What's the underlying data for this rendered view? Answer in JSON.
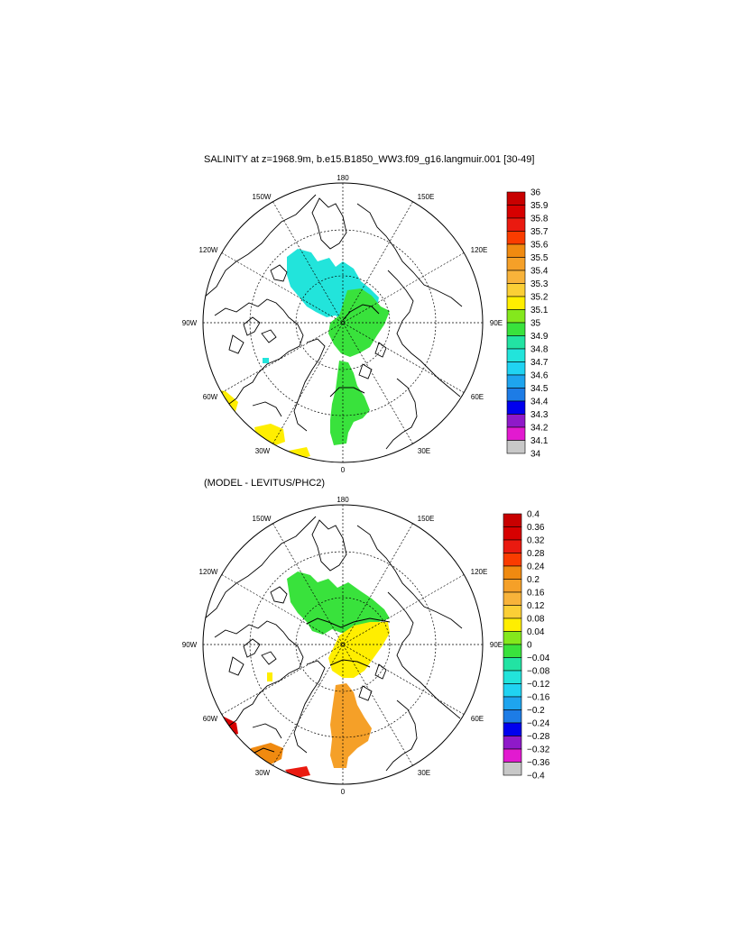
{
  "panel1": {
    "title": "SALINITY at z=1968.9m, b.e15.B1850_WW3.f09_g16.langmuir.001 [30-49]",
    "colorbar": [
      {
        "label": "36",
        "color": "#c80000"
      },
      {
        "label": "35.9",
        "color": "#d70000"
      },
      {
        "label": "35.8",
        "color": "#ea1a10"
      },
      {
        "label": "35.7",
        "color": "#fa3c00"
      },
      {
        "label": "35.6",
        "color": "#f08a10"
      },
      {
        "label": "35.5",
        "color": "#f5a028"
      },
      {
        "label": "35.4",
        "color": "#f8b33a"
      },
      {
        "label": "35.3",
        "color": "#fbcf36"
      },
      {
        "label": "35.2",
        "color": "#ffee00"
      },
      {
        "label": "35.1",
        "color": "#84e81c"
      },
      {
        "label": "35",
        "color": "#39e23c"
      },
      {
        "label": "34.9",
        "color": "#22e3a3"
      },
      {
        "label": "34.8",
        "color": "#22e4db"
      },
      {
        "label": "34.7",
        "color": "#20d3f2"
      },
      {
        "label": "34.6",
        "color": "#1ea4ee"
      },
      {
        "label": "34.5",
        "color": "#1d7ce6"
      },
      {
        "label": "34.4",
        "color": "#0000ee"
      },
      {
        "label": "34.3",
        "color": "#8f19c9"
      },
      {
        "label": "34.2",
        "color": "#e21ad0"
      },
      {
        "label": "34.1",
        "color": "#c8c8c8"
      },
      {
        "label": "34",
        "color": "#6e6e6e"
      }
    ]
  },
  "panel2": {
    "title": "(MODEL - LEVITUS/PHC2)",
    "colorbar": [
      {
        "label": "0.4",
        "color": "#c80000"
      },
      {
        "label": "0.36",
        "color": "#d70000"
      },
      {
        "label": "0.32",
        "color": "#ea1a10"
      },
      {
        "label": "0.28",
        "color": "#fa3c00"
      },
      {
        "label": "0.24",
        "color": "#f08a10"
      },
      {
        "label": "0.2",
        "color": "#f5a028"
      },
      {
        "label": "0.16",
        "color": "#f8b33a"
      },
      {
        "label": "0.12",
        "color": "#fbcf36"
      },
      {
        "label": "0.08",
        "color": "#ffee00"
      },
      {
        "label": "0.04",
        "color": "#84e81c"
      },
      {
        "label": "0",
        "color": "#39e23c"
      },
      {
        "label": "−0.04",
        "color": "#22e3a3"
      },
      {
        "label": "−0.08",
        "color": "#22e4db"
      },
      {
        "label": "−0.12",
        "color": "#20d3f2"
      },
      {
        "label": "−0.16",
        "color": "#1ea4ee"
      },
      {
        "label": "−0.2",
        "color": "#1d7ce6"
      },
      {
        "label": "−0.24",
        "color": "#0000ee"
      },
      {
        "label": "−0.28",
        "color": "#8f19c9"
      },
      {
        "label": "−0.32",
        "color": "#e21ad0"
      },
      {
        "label": "−0.36",
        "color": "#c8c8c8"
      },
      {
        "label": "−0.4",
        "color": "#6e6e6e"
      }
    ]
  },
  "map_labels": {
    "lon_180": "180",
    "lon_0": "0",
    "lon_150w": "150W",
    "lon_150e": "150E",
    "lon_120w": "120W",
    "lon_120e": "120E",
    "lon_90w": "90W",
    "lon_90e": "90E",
    "lon_60w": "60W",
    "lon_60e": "60E",
    "lon_30w": "30W",
    "lon_30e": "30E"
  },
  "map": {
    "projection": "north polar stereographic",
    "grid_style": "dotted",
    "land_style": "coastline outline only"
  }
}
